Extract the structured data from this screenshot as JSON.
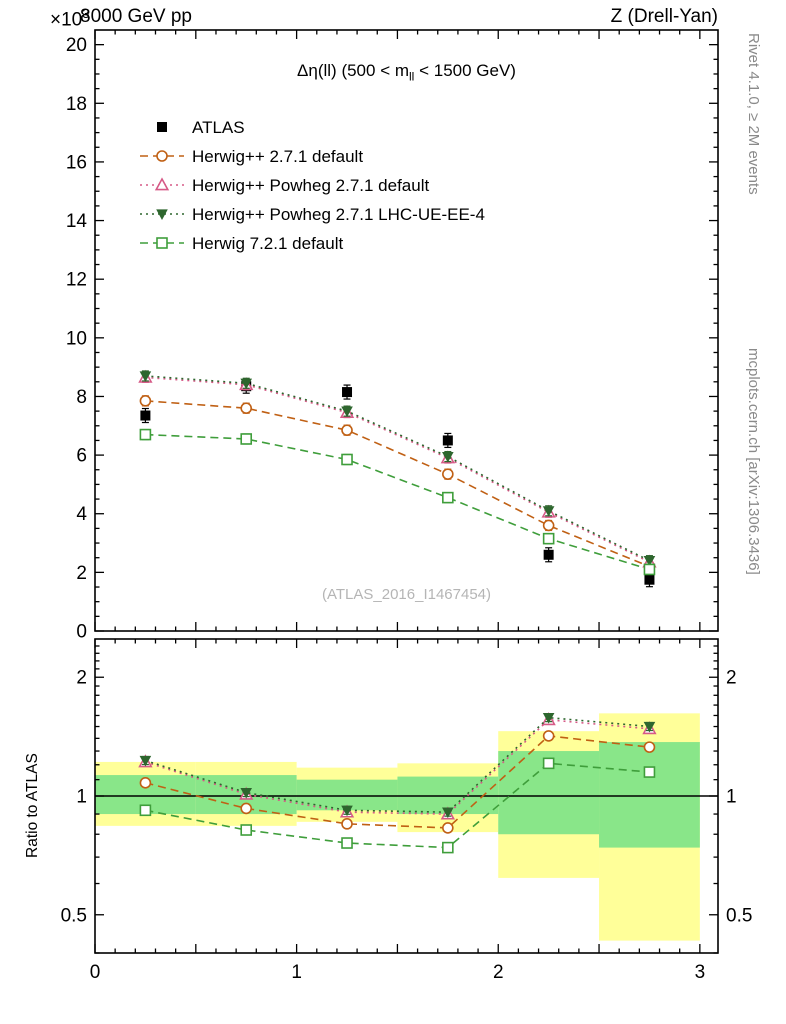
{
  "header": {
    "multiplier_base": "×10",
    "multiplier_exp": "3",
    "collision": "8000 GeV pp",
    "process": "Z (Drell-Yan)"
  },
  "watermarks": {
    "rivet": "Rivet 4.1.0, ≥ 2M events",
    "mcplots": "mcplots.cern.ch [arXiv:1306.3436]",
    "analysis": "(ATLAS_2016_I1467454)"
  },
  "chart_data": {
    "type": "line",
    "title": "Δη(ll) (500 < m_ll < 1500 GeV)",
    "title_pre": "Δη(ll) (500 < m",
    "title_sub": "ll",
    "title_post": " < 1500 GeV)",
    "xlim": [
      0,
      3.09
    ],
    "xticks": [
      0,
      1,
      2,
      3
    ],
    "x": [
      0.25,
      0.75,
      1.25,
      1.75,
      2.25,
      2.75
    ],
    "main": {
      "ylim": [
        0,
        20.5
      ],
      "yticks": [
        0,
        2,
        4,
        6,
        8,
        10,
        12,
        14,
        16,
        18,
        20
      ],
      "y_axis_multiplier": "×10^3",
      "series": [
        {
          "name": "ATLAS",
          "color": "#000000",
          "marker": "filled-square",
          "line": "none",
          "values": [
            7.35,
            8.35,
            8.15,
            6.5,
            2.6,
            1.75
          ]
        },
        {
          "name": "Herwig++ 2.7.1 default",
          "color": "#c06014",
          "marker": "open-circle",
          "line": "dashed",
          "values": [
            7.85,
            7.6,
            6.85,
            5.35,
            3.6,
            2.2
          ]
        },
        {
          "name": "Herwig++ Powheg 2.7.1 default",
          "color": "#d65a87",
          "marker": "open-triangle-up",
          "line": "dotted",
          "values": [
            8.65,
            8.4,
            7.45,
            5.9,
            4.05,
            2.35
          ]
        },
        {
          "name": "Herwig++ Powheg 2.7.1 LHC-UE-EE-4",
          "color": "#2e662e",
          "marker": "filled-triangle-down",
          "line": "dotted",
          "values": [
            8.7,
            8.45,
            7.5,
            5.95,
            4.1,
            2.4
          ]
        },
        {
          "name": "Herwig 7.2.1 default",
          "color": "#3f9e3b",
          "marker": "open-square",
          "line": "dashed",
          "values": [
            6.7,
            6.55,
            5.85,
            4.55,
            3.15,
            2.1
          ]
        }
      ]
    },
    "ratio": {
      "ylabel": "Ratio to ATLAS",
      "scale": "log",
      "ylim": [
        0.4,
        2.5
      ],
      "yticks": [
        0.5,
        1,
        2
      ],
      "reference_line": 1,
      "bands": {
        "edges": [
          0,
          0.5,
          1.0,
          1.5,
          2.0,
          2.5,
          3.0
        ],
        "yellow_color": "#ffff99",
        "green_color": "#89e689",
        "yellow": [
          [
            0.84,
            1.22
          ],
          [
            0.84,
            1.22
          ],
          [
            0.86,
            1.18
          ],
          [
            0.81,
            1.21
          ],
          [
            0.62,
            1.46
          ],
          [
            0.43,
            1.62
          ]
        ],
        "green": [
          [
            0.9,
            1.13
          ],
          [
            0.9,
            1.13
          ],
          [
            0.92,
            1.1
          ],
          [
            0.9,
            1.12
          ],
          [
            0.8,
            1.3
          ],
          [
            0.74,
            1.37
          ]
        ]
      },
      "series": [
        {
          "name": "Herwig++ 2.7.1 default",
          "values": [
            1.08,
            0.93,
            0.85,
            0.83,
            1.42,
            1.33
          ]
        },
        {
          "name": "Herwig++ Powheg 2.7.1 default",
          "values": [
            1.22,
            1.01,
            0.91,
            0.9,
            1.56,
            1.48
          ]
        },
        {
          "name": "Herwig++ Powheg 2.7.1 LHC-UE-EE-4",
          "values": [
            1.23,
            1.02,
            0.92,
            0.91,
            1.58,
            1.5
          ]
        },
        {
          "name": "Herwig 7.2.1 default",
          "values": [
            0.92,
            0.82,
            0.76,
            0.74,
            1.21,
            1.15
          ]
        }
      ]
    }
  }
}
